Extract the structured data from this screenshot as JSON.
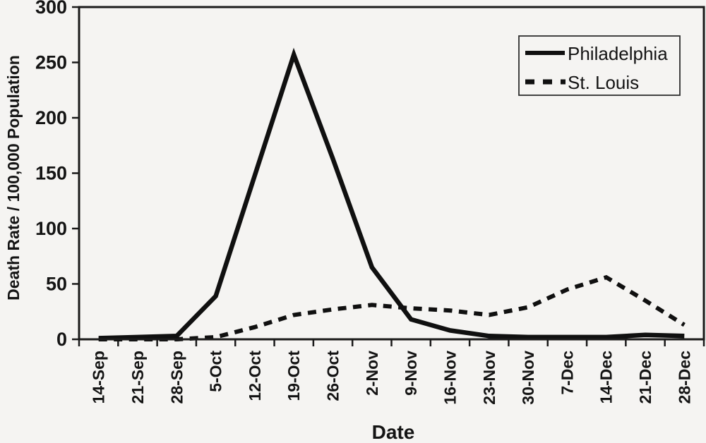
{
  "figure": {
    "background": "#f5f4f2",
    "ink": "#141414"
  },
  "chart_data": {
    "type": "line",
    "title": "",
    "xlabel": "Date",
    "ylabel": "Death Rate / 100,000 Population",
    "ylim": [
      0,
      300
    ],
    "yticks": [
      0,
      50,
      100,
      150,
      200,
      250,
      300
    ],
    "grid": false,
    "legend_position": "top-right",
    "categories": [
      "14-Sep",
      "21-Sep",
      "28-Sep",
      "5-Oct",
      "12-Oct",
      "19-Oct",
      "26-Oct",
      "2-Nov",
      "9-Nov",
      "16-Nov",
      "23-Nov",
      "30-Nov",
      "7-Dec",
      "14-Dec",
      "21-Dec",
      "28-Dec"
    ],
    "series": [
      {
        "name": "Philadelphia",
        "line_style": "solid",
        "color": "#101010",
        "values": [
          1,
          2,
          3,
          39,
          148,
          257,
          163,
          65,
          18,
          8,
          3,
          2,
          2,
          2,
          4,
          3
        ]
      },
      {
        "name": "St. Louis",
        "line_style": "dashed",
        "color": "#101010",
        "values": [
          0,
          0,
          0,
          2,
          11,
          22,
          27,
          31,
          28,
          26,
          22,
          29,
          45,
          56,
          35,
          13
        ]
      }
    ]
  }
}
